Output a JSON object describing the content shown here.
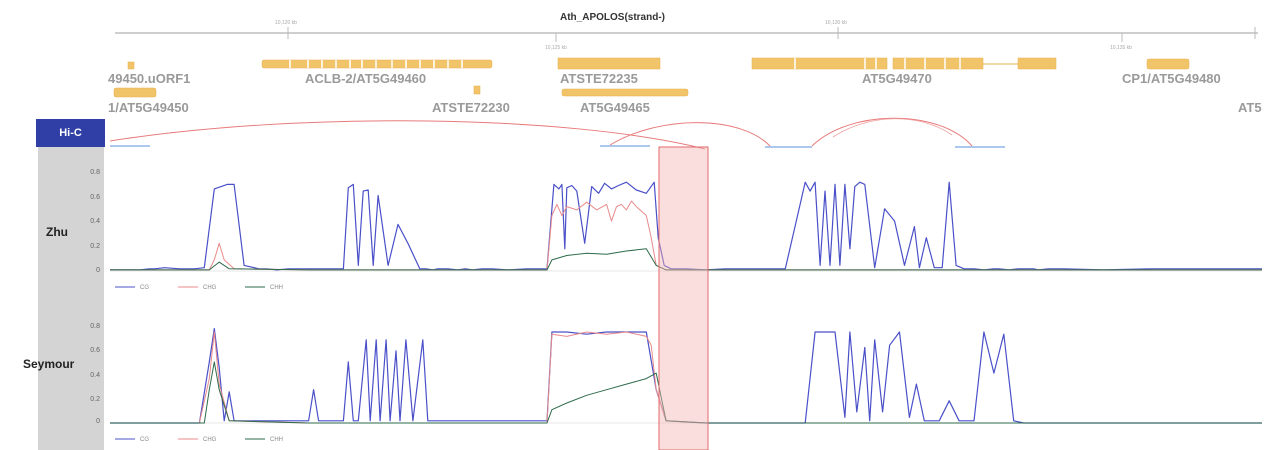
{
  "header": {
    "title": "Ath_APOLOS(strand-)",
    "axis_ticks": [
      "10,120 kb",
      "10,125 kb",
      "10,130 kb",
      "10,135 kb"
    ]
  },
  "genes": [
    {
      "label": "49450.uORF1"
    },
    {
      "label": "ACLB-2/AT5G49460"
    },
    {
      "label": "ATSTE72235"
    },
    {
      "label": "AT5G49470"
    },
    {
      "label": "CP1/AT5G49480"
    },
    {
      "label": "1/AT5G49450"
    },
    {
      "label": "ATSTE72230"
    },
    {
      "label": "AT5G49465"
    },
    {
      "label": "AT5"
    }
  ],
  "tracks": {
    "hic": {
      "label": "Hi-C"
    },
    "zhu": {
      "label": "Zhu",
      "yticks": [
        "0.8",
        "0.6",
        "0.4",
        "0.2",
        "0"
      ]
    },
    "seymour": {
      "label": "Seymour",
      "yticks": [
        "0.8",
        "0.6",
        "0.4",
        "0.2",
        "0"
      ]
    }
  },
  "legend": [
    "CG",
    "CHG",
    "CHH"
  ],
  "colors": {
    "cg": "#4a50c8",
    "chg": "#e88a8a",
    "chh": "#2e6a4a",
    "gene": "#f2c46a",
    "highlight": "#f4b6b6",
    "hic_tab": "#2f3fa5"
  },
  "chart_data": [
    {
      "type": "line",
      "track": "Zhu",
      "ylim": [
        0,
        1
      ],
      "series": [
        {
          "name": "CG",
          "x": [
            0,
            30,
            40,
            45,
            55,
            70,
            85,
            95,
            105,
            118,
            125,
            135,
            150,
            158,
            168,
            180,
            220,
            235,
            240,
            245,
            250,
            255,
            260,
            265,
            270,
            280,
            290,
            300,
            312,
            318,
            325,
            330,
            340,
            350,
            358,
            365,
            375,
            385,
            400,
            420,
            440,
            447,
            452,
            455,
            458,
            460,
            465,
            470,
            478,
            485,
            492,
            498,
            505,
            512,
            520,
            530,
            540,
            548,
            552,
            558,
            565,
            580,
            600,
            620,
            650,
            680,
            700,
            705,
            710,
            715,
            720,
            725,
            730,
            735,
            740,
            745,
            750,
            755,
            760,
            770,
            780,
            790,
            800,
            810,
            815,
            822,
            830,
            838,
            845,
            852,
            860,
            870,
            880,
            890,
            895,
            905,
            915,
            925,
            930,
            935,
            945,
            960,
            1000,
            1050,
            1100,
            1160
          ],
          "y": [
            0.01,
            0.01,
            0.02,
            0.02,
            0.03,
            0.02,
            0.02,
            0.03,
            0.74,
            0.78,
            0.78,
            0.05,
            0.02,
            0.02,
            0.01,
            0.02,
            0.02,
            0.02,
            0.75,
            0.78,
            0.05,
            0.72,
            0.73,
            0.05,
            0.68,
            0.05,
            0.42,
            0.25,
            0.02,
            0.02,
            0.01,
            0.02,
            0.02,
            0.01,
            0.02,
            0.01,
            0.02,
            0.02,
            0.01,
            0.02,
            0.02,
            0.78,
            0.74,
            0.78,
            0.2,
            0.75,
            0.77,
            0.72,
            0.25,
            0.76,
            0.7,
            0.79,
            0.74,
            0.77,
            0.8,
            0.73,
            0.7,
            0.8,
            0.3,
            0.05,
            0.02,
            0.02,
            0.01,
            0.02,
            0.02,
            0.02,
            0.8,
            0.72,
            0.8,
            0.05,
            0.72,
            0.05,
            0.78,
            0.05,
            0.78,
            0.2,
            0.76,
            0.8,
            0.78,
            0.03,
            0.56,
            0.45,
            0.05,
            0.4,
            0.03,
            0.3,
            0.03,
            0.03,
            0.8,
            0.05,
            0.02,
            0.02,
            0.01,
            0.02,
            0.02,
            0.01,
            0.02,
            0.02,
            0.02,
            0.01,
            0.02,
            0.02,
            0.01,
            0.02,
            0.02,
            0.02
          ]
        },
        {
          "name": "CHG",
          "x": [
            0,
            50,
            100,
            105,
            110,
            115,
            125,
            200,
            440,
            445,
            450,
            455,
            460,
            470,
            480,
            490,
            500,
            505,
            510,
            515,
            520,
            525,
            530,
            540,
            545,
            550,
            560,
            600,
            800,
            1000,
            1160
          ],
          "y": [
            0.01,
            0.01,
            0.01,
            0.1,
            0.25,
            0.1,
            0.02,
            0.01,
            0.01,
            0.5,
            0.6,
            0.5,
            0.58,
            0.55,
            0.62,
            0.55,
            0.6,
            0.45,
            0.58,
            0.6,
            0.55,
            0.63,
            0.58,
            0.5,
            0.3,
            0.05,
            0.01,
            0.01,
            0.01,
            0.01,
            0.01
          ]
        },
        {
          "name": "CHH",
          "x": [
            0,
            100,
            110,
            120,
            200,
            440,
            445,
            460,
            480,
            500,
            520,
            540,
            550,
            560,
            600,
            800,
            1000,
            1160
          ],
          "y": [
            0.01,
            0.01,
            0.08,
            0.02,
            0.01,
            0.01,
            0.1,
            0.14,
            0.16,
            0.15,
            0.18,
            0.2,
            0.05,
            0.01,
            0.01,
            0.01,
            0.01,
            0.01
          ]
        }
      ]
    },
    {
      "type": "line",
      "track": "Seymour",
      "ylim": [
        0,
        1
      ],
      "series": [
        {
          "name": "CG",
          "x": [
            0,
            80,
            90,
            100,
            105,
            110,
            115,
            120,
            125,
            200,
            205,
            210,
            235,
            240,
            245,
            250,
            258,
            262,
            268,
            272,
            278,
            282,
            288,
            292,
            298,
            305,
            315,
            320,
            325,
            440,
            445,
            460,
            480,
            500,
            520,
            540,
            550,
            560,
            600,
            700,
            710,
            730,
            740,
            745,
            752,
            760,
            765,
            770,
            778,
            785,
            795,
            805,
            812,
            820,
            835,
            845,
            855,
            870,
            880,
            890,
            900,
            910,
            920,
            930,
            935,
            940,
            960,
            1000,
            1160
          ],
          "y": [
            0,
            0,
            0,
            0.55,
            0.85,
            0.5,
            0.02,
            0.28,
            0.02,
            0.02,
            0.3,
            0.02,
            0.02,
            0.55,
            0.02,
            0.02,
            0.75,
            0.02,
            0.75,
            0.02,
            0.75,
            0.02,
            0.65,
            0.02,
            0.75,
            0.02,
            0.75,
            0.02,
            0.02,
            0.02,
            0.82,
            0.82,
            0.8,
            0.82,
            0.82,
            0.82,
            0.3,
            0.02,
            0,
            0,
            0.82,
            0.82,
            0.05,
            0.82,
            0.1,
            0.68,
            0.02,
            0.75,
            0.1,
            0.7,
            0.82,
            0.05,
            0.35,
            0.02,
            0.02,
            0.2,
            0.02,
            0.02,
            0.82,
            0.45,
            0.8,
            0.02,
            0,
            0,
            0,
            0,
            0,
            0,
            0
          ]
        },
        {
          "name": "CHG",
          "x": [
            0,
            90,
            100,
            105,
            110,
            120,
            200,
            440,
            445,
            460,
            480,
            500,
            520,
            540,
            545,
            550,
            560,
            600,
            1160
          ],
          "y": [
            0,
            0,
            0.4,
            0.82,
            0.35,
            0.02,
            0,
            0,
            0.8,
            0.78,
            0.82,
            0.8,
            0.82,
            0.78,
            0.7,
            0.3,
            0.02,
            0,
            0
          ]
        },
        {
          "name": "CHH",
          "x": [
            0,
            95,
            100,
            105,
            110,
            120,
            200,
            440,
            445,
            460,
            480,
            500,
            520,
            540,
            550,
            560,
            600,
            1160
          ],
          "y": [
            0,
            0,
            0.3,
            0.55,
            0.3,
            0.02,
            0,
            0,
            0.12,
            0.18,
            0.25,
            0.3,
            0.35,
            0.4,
            0.45,
            0.02,
            0,
            0
          ]
        }
      ]
    }
  ]
}
